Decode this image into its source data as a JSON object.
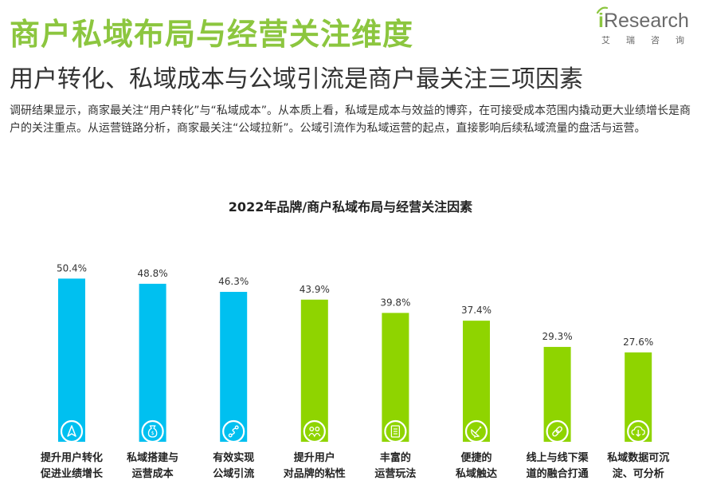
{
  "header": {
    "title": "商户私域布局与经营关注维度",
    "subtitle": "用户转化、私域成本与公域引流是商户最关注三项因素",
    "body": "调研结果显示，商家最关注“用户转化”与“私域成本”。从本质上看，私域是成本与效益的博弈，在可接受成本范围内撬动更大业绩增长是商户的关注重点。从运营链路分析，商家最关注“公域拉新”。公域引流作为私域运营的起点，直接影响后续私域流量的盘活与运营。"
  },
  "logo": {
    "word_i": "i",
    "word_rest": "Research",
    "sub": [
      "艾",
      "瑞",
      "咨",
      "询"
    ]
  },
  "colors": {
    "accent_green": "#8cc63f",
    "bar_blue": "#00c0f0",
    "bar_green": "#8fd400"
  },
  "chart_data": {
    "type": "bar",
    "title": "2022年品牌/商户私域布局与经营关注因素",
    "ylim": [
      0,
      55
    ],
    "grid": false,
    "categories": [
      [
        "提升用户转化",
        "促进业绩增长"
      ],
      [
        "私域搭建与",
        "运营成本"
      ],
      [
        "有效实现",
        "公域引流"
      ],
      [
        "提升用户",
        "对品牌的粘性"
      ],
      [
        "丰富的",
        "运营玩法"
      ],
      [
        "便捷的",
        "私域触达"
      ],
      [
        "线上与线下渠",
        "道的融合打通"
      ],
      [
        "私域数据可沉",
        "淀、可分析"
      ]
    ],
    "values": [
      50.4,
      48.8,
      46.3,
      43.9,
      39.8,
      37.4,
      29.3,
      27.6
    ],
    "labels": [
      "50.4%",
      "48.8%",
      "46.3%",
      "43.9%",
      "39.8%",
      "37.4%",
      "29.3%",
      "27.6%"
    ],
    "bar_colors": [
      "#00c0f0",
      "#00c0f0",
      "#00c0f0",
      "#8fd400",
      "#8fd400",
      "#8fd400",
      "#8fd400",
      "#8fd400"
    ],
    "icons": [
      "navigation-arrow-icon",
      "money-bag-icon",
      "route-icon",
      "people-icon",
      "document-icon",
      "satellite-dish-icon",
      "link-icon",
      "cloud-download-icon"
    ]
  }
}
